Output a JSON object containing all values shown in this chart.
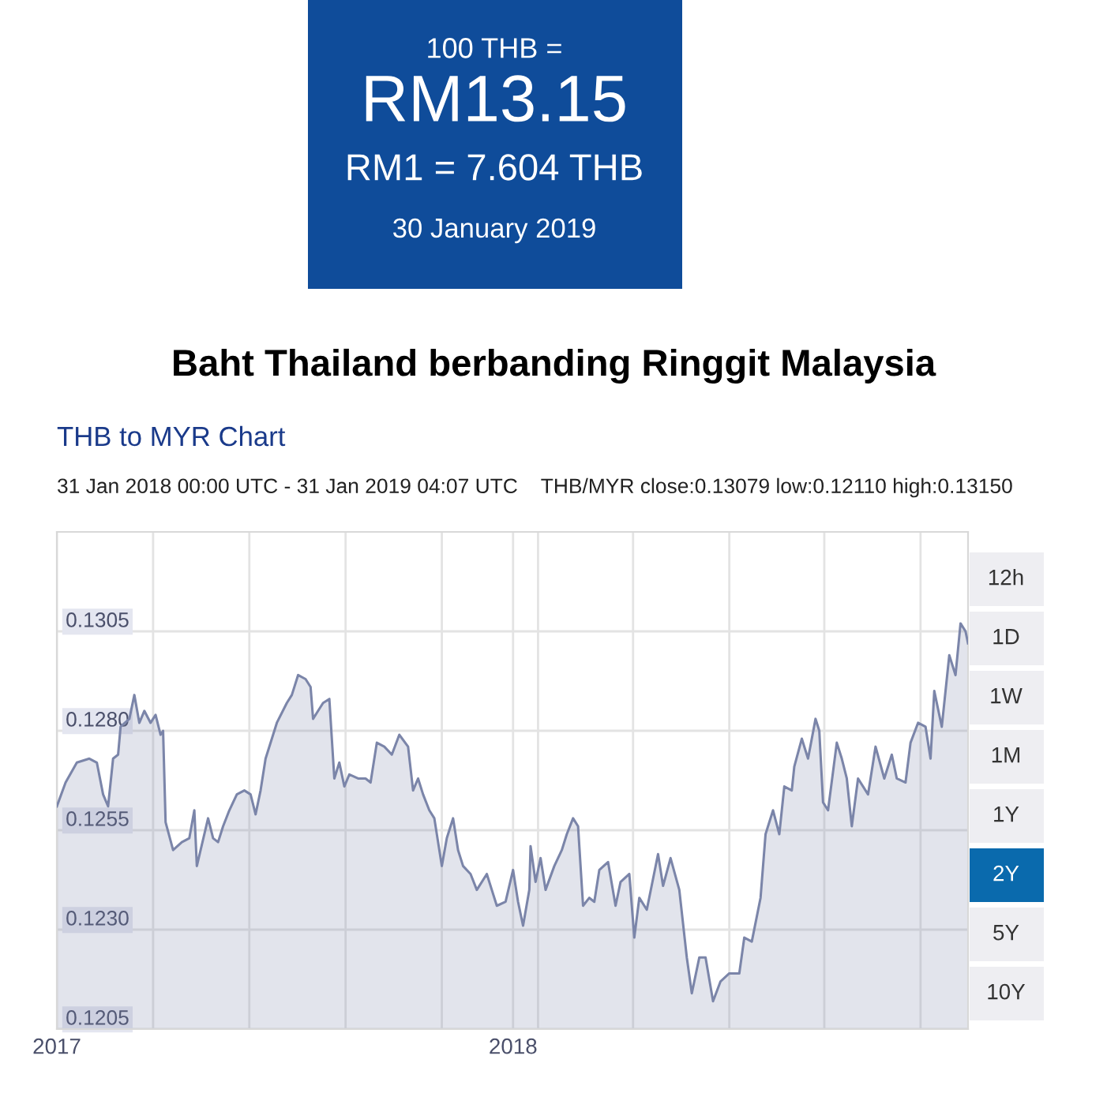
{
  "chart_data": {
    "type": "area",
    "title": "Baht Thailand berbanding Ringgit Malaysia",
    "subtitle": "THB to MYR Chart",
    "annotations": [
      "100 THB =",
      "RM13.15",
      "RM1 = 7.604 THB",
      "30 January 2019",
      "31 Jan 2018 00:00 UTC - 31 Jan 2019 04:07 UTC    THB/MYR close:0.13079 low:0.12110 high:0.13150",
      "12h",
      "1D",
      "1W",
      "1M",
      "1Y",
      "2Y",
      "5Y",
      "10Y"
    ],
    "x": [
      "2017-01-01",
      "2017-01-08",
      "2017-01-17",
      "2017-01-27",
      "2017-02-02",
      "2017-02-07",
      "2017-02-11",
      "2017-02-15",
      "2017-02-19",
      "2017-02-21",
      "2017-02-28",
      "2017-03-04",
      "2017-03-08",
      "2017-03-12",
      "2017-03-17",
      "2017-03-21",
      "2017-03-25",
      "2017-03-27",
      "2017-03-29",
      "2017-04-04",
      "2017-04-11",
      "2017-04-17",
      "2017-04-21",
      "2017-04-23",
      "2017-05-02",
      "2017-05-06",
      "2017-05-10",
      "2017-05-14",
      "2017-05-19",
      "2017-05-25",
      "2017-05-31",
      "2017-06-05",
      "2017-06-09",
      "2017-06-13",
      "2017-06-17",
      "2017-06-26",
      "2017-07-04",
      "2017-07-08",
      "2017-07-13",
      "2017-07-19",
      "2017-07-23",
      "2017-07-25",
      "2017-07-29",
      "2017-08-02",
      "2017-08-07",
      "2017-08-11",
      "2017-08-15",
      "2017-08-19",
      "2017-08-23",
      "2017-08-30",
      "2017-09-05",
      "2017-09-09",
      "2017-09-14",
      "2017-09-20",
      "2017-09-26",
      "2017-10-02",
      "2017-10-09",
      "2017-10-13",
      "2017-10-17",
      "2017-10-21",
      "2017-10-26",
      "2017-10-30",
      "2017-11-05",
      "2017-11-09",
      "2017-11-14",
      "2017-11-18",
      "2017-11-22",
      "2017-11-28",
      "2017-12-03",
      "2017-12-11",
      "2017-12-15",
      "2017-12-19",
      "2017-12-26",
      "2018-01-01",
      "2018-01-05",
      "2018-01-09",
      "2018-01-14",
      "2018-01-15",
      "2018-01-19",
      "2018-01-23",
      "2018-01-27",
      "2018-02-03",
      "2018-02-09",
      "2018-02-13",
      "2018-02-18",
      "2018-02-22",
      "2018-02-26",
      "2018-03-03",
      "2018-03-07",
      "2018-03-11",
      "2018-03-18",
      "2018-03-24",
      "2018-03-28",
      "2018-04-04",
      "2018-04-08",
      "2018-04-12",
      "2018-04-18",
      "2018-04-27",
      "2018-05-01",
      "2018-05-07",
      "2018-05-14",
      "2018-05-20",
      "2018-05-24",
      "2018-05-30",
      "2018-06-04",
      "2018-06-10",
      "2018-06-16",
      "2018-06-23",
      "2018-07-01",
      "2018-07-05",
      "2018-07-11",
      "2018-07-18",
      "2018-07-22",
      "2018-07-28",
      "2018-08-02",
      "2018-08-06",
      "2018-08-12",
      "2018-08-14",
      "2018-08-20",
      "2018-08-25",
      "2018-08-31",
      "2018-09-03",
      "2018-09-06",
      "2018-09-10",
      "2018-09-17",
      "2018-09-21",
      "2018-09-25",
      "2018-09-29",
      "2018-10-04",
      "2018-10-12",
      "2018-10-18",
      "2018-10-25",
      "2018-10-31",
      "2018-11-04",
      "2018-11-11",
      "2018-11-15",
      "2018-11-21",
      "2018-11-27",
      "2018-12-01",
      "2018-12-04",
      "2018-12-10",
      "2018-12-16",
      "2018-12-21",
      "2018-12-25",
      "2018-12-29",
      "2018-12-31"
    ],
    "series": [
      {
        "color": "#7b85a9",
        "values": [
          0.1261,
          0.1267,
          0.1272,
          0.1273,
          0.1272,
          0.1264,
          0.1261,
          0.1273,
          0.1274,
          0.1281,
          0.1283,
          0.1289,
          0.1282,
          0.1285,
          0.1282,
          0.1284,
          0.1279,
          0.128,
          0.1257,
          0.125,
          0.1252,
          0.1253,
          0.126,
          0.1246,
          0.1258,
          0.1253,
          0.1252,
          0.1256,
          0.126,
          0.1264,
          0.1265,
          0.1264,
          0.1259,
          0.1265,
          0.1273,
          0.1282,
          0.1287,
          0.1289,
          0.1294,
          0.1293,
          0.1291,
          0.1283,
          0.1285,
          0.1287,
          0.1288,
          0.1268,
          0.1272,
          0.1266,
          0.1269,
          0.1268,
          0.1268,
          0.1267,
          0.1277,
          0.1276,
          0.1274,
          0.1279,
          0.1276,
          0.1265,
          0.1268,
          0.1264,
          0.126,
          0.1258,
          0.1246,
          0.1253,
          0.1258,
          0.125,
          0.1246,
          0.1244,
          0.124,
          0.1244,
          0.124,
          0.1236,
          0.1237,
          0.1245,
          0.1237,
          0.1231,
          0.124,
          0.1251,
          0.1242,
          0.1248,
          0.124,
          0.1246,
          0.125,
          0.1254,
          0.1258,
          0.1256,
          0.1236,
          0.1238,
          0.1237,
          0.1245,
          0.1247,
          0.1236,
          0.1242,
          0.1244,
          0.1228,
          0.1238,
          0.1235,
          0.1249,
          0.1241,
          0.1248,
          0.124,
          0.1223,
          0.1214,
          0.1223,
          0.1223,
          0.1212,
          0.1217,
          0.1219,
          0.1219,
          0.1228,
          0.1227,
          0.1238,
          0.1254,
          0.126,
          0.1254,
          0.1266,
          0.1265,
          0.1271,
          0.1278,
          0.1273,
          0.1283,
          0.128,
          0.1262,
          0.126,
          0.1277,
          0.1273,
          0.1268,
          0.1256,
          0.1268,
          0.1264,
          0.1276,
          0.1268,
          0.1274,
          0.1268,
          0.1267,
          0.1277,
          0.1282,
          0.1281,
          0.1273,
          0.129,
          0.1281,
          0.1299,
          0.1294,
          0.1307,
          0.1305,
          0.1302
        ]
      }
    ],
    "xlim": [
      "2017-01-01",
      "2018-12-31"
    ],
    "xticks": [
      {
        "value": "2017-01-01",
        "label": "2017"
      },
      {
        "value": "2017-03-19",
        "label": null
      },
      {
        "value": "2017-06-04",
        "label": null
      },
      {
        "value": "2017-08-20",
        "label": null
      },
      {
        "value": "2017-11-05",
        "label": null
      },
      {
        "value": "2018-01-01",
        "label": "2018"
      },
      {
        "value": "2018-01-21",
        "label": null
      },
      {
        "value": "2018-04-07",
        "label": null
      },
      {
        "value": "2018-06-23",
        "label": null
      },
      {
        "value": "2018-09-07",
        "label": null
      },
      {
        "value": "2018-11-23",
        "label": null
      }
    ],
    "ylim": [
      0.1205,
      0.133
    ],
    "yticks": [
      0.1205,
      {
        "value": 0.123,
        "label": "0.1230"
      },
      0.1255,
      {
        "value": 0.128,
        "label": "0.1280"
      },
      0.1305
    ],
    "grid": true,
    "legend": false
  }
}
